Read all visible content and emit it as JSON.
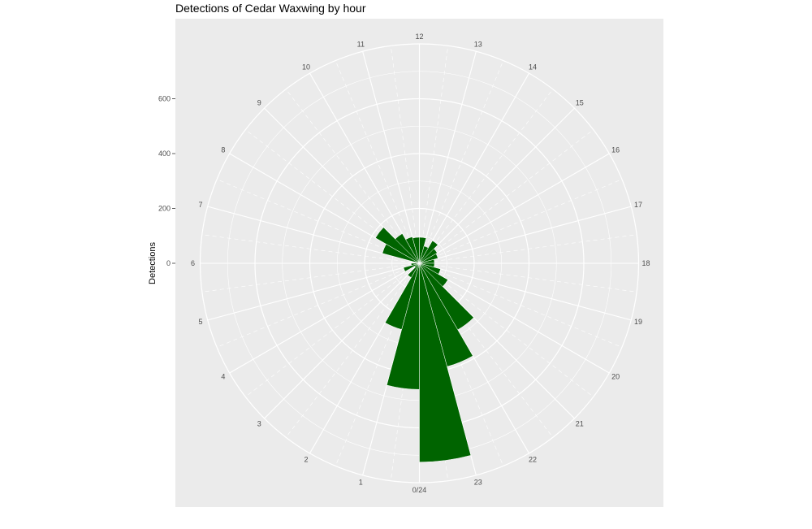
{
  "chart_data": {
    "type": "bar",
    "coord": "polar",
    "title": "Detections of Cedar Waxwing by hour",
    "ylabel": "Detections",
    "xlabel": "",
    "y_ticks": [
      0,
      200,
      400,
      600
    ],
    "ylim": [
      0,
      800
    ],
    "grid": true,
    "hour_labels": [
      "0/24",
      "1",
      "2",
      "3",
      "4",
      "5",
      "6",
      "7",
      "8",
      "9",
      "10",
      "11",
      "12",
      "13",
      "14",
      "15",
      "16",
      "17",
      "18",
      "19",
      "20",
      "21",
      "22",
      "23"
    ],
    "categories": [
      "0",
      "1",
      "2",
      "3",
      "4",
      "5",
      "6",
      "7",
      "8",
      "9",
      "10",
      "11",
      "12",
      "13",
      "14",
      "15",
      "16",
      "17",
      "18",
      "19",
      "20",
      "21",
      "22",
      "23"
    ],
    "values": [
      460,
      250,
      60,
      20,
      60,
      30,
      10,
      140,
      185,
      125,
      100,
      95,
      95,
      65,
      95,
      75,
      70,
      55,
      55,
      80,
      120,
      280,
      390,
      725
    ],
    "colors": {
      "bar": "#006400",
      "panel": "#ebebeb",
      "grid": "#ffffff",
      "text": "#4d4d4d"
    }
  }
}
